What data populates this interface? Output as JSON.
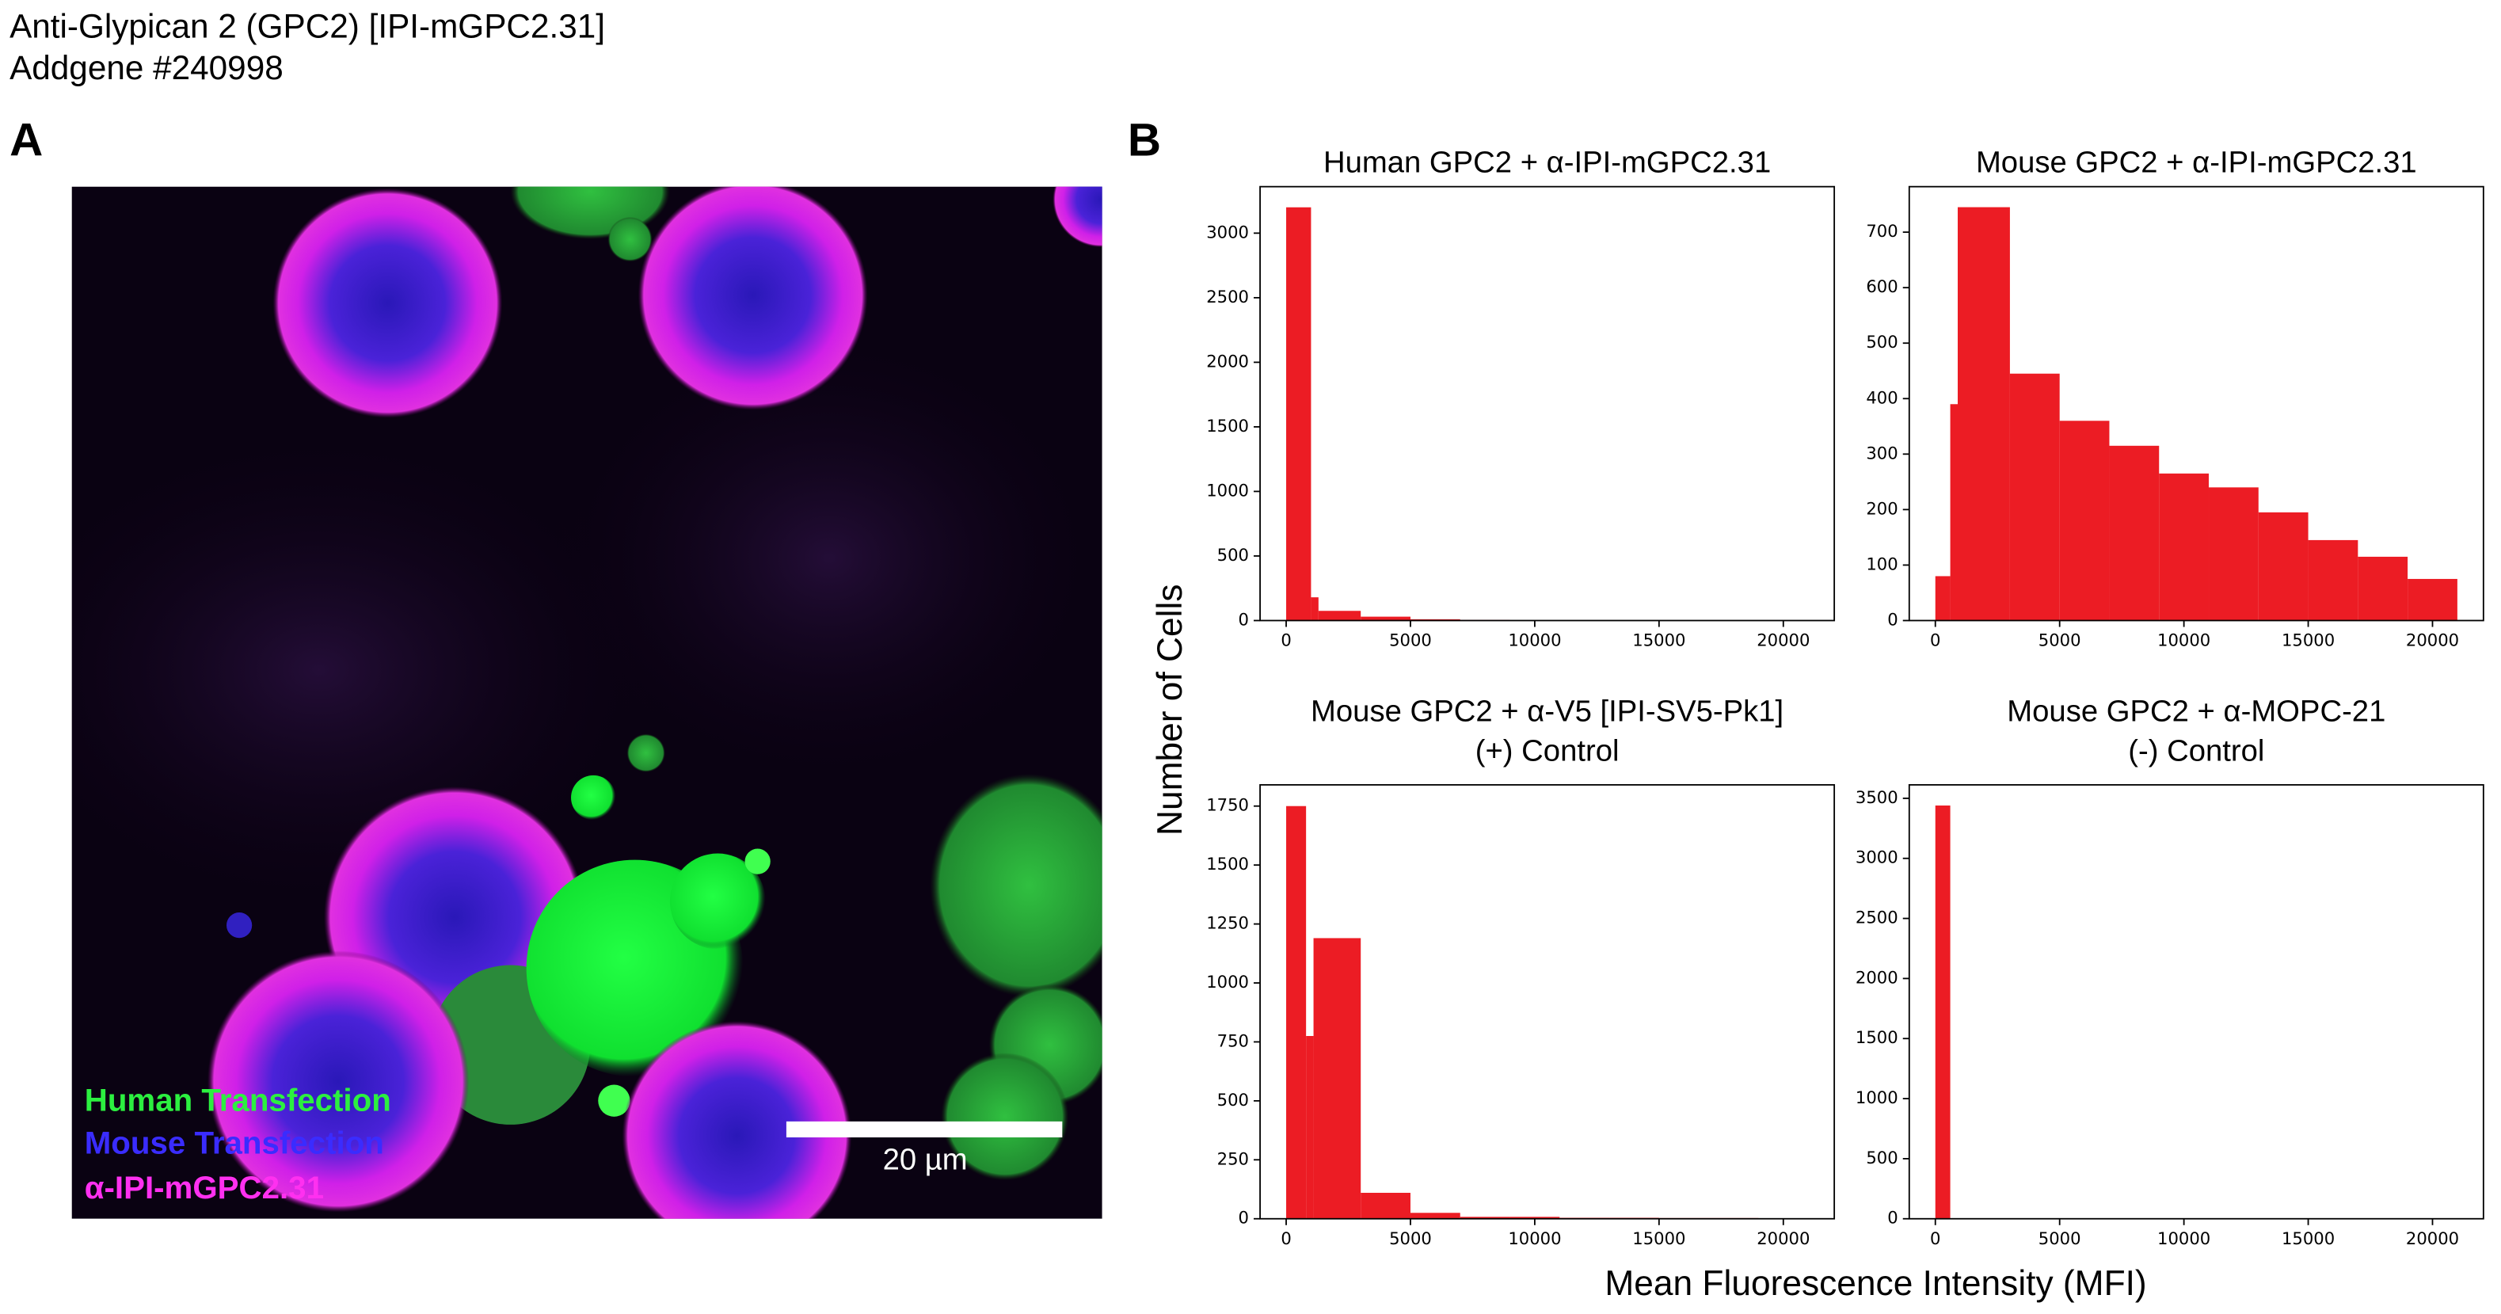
{
  "header": {
    "title": "Anti-Glypican 2 (GPC2) [IPI-mGPC2.31]",
    "subtitle": "Addgene #240998"
  },
  "panel_a": {
    "label": "A",
    "legend": [
      "Human Transfection",
      "Mouse Transfection",
      "α-IPI-mGPC2.31"
    ],
    "scale_bar": "20 µm"
  },
  "panel_b": {
    "label": "B",
    "y_label": "Number of Cells",
    "x_label": "Mean Fluorescence Intensity (MFI)"
  },
  "chart_data": [
    {
      "type": "histogram",
      "title": "Human GPC2 + α-IPI-mGPC2.31",
      "color": "#ec1c24",
      "bins": [
        0,
        1000,
        1300,
        3000,
        5000,
        7000,
        9000,
        11000,
        13000,
        15000,
        17000,
        19000,
        21000
      ],
      "values": [
        3200,
        180,
        75,
        30,
        10,
        5,
        3,
        2,
        2,
        1,
        1,
        1
      ],
      "xlim": [
        -1050,
        22050
      ],
      "xticks": [
        0,
        5000,
        10000,
        15000,
        20000
      ],
      "ylim": [
        0,
        3360
      ],
      "yticks": [
        0,
        500,
        1000,
        1500,
        2000,
        2500,
        3000
      ]
    },
    {
      "type": "histogram",
      "title": "Mouse GPC2 + α-IPI-mGPC2.31",
      "color": "#ec1c24",
      "bins": [
        0,
        600,
        900,
        3000,
        5000,
        7000,
        9000,
        11000,
        13000,
        15000,
        17000,
        19000,
        21000
      ],
      "values": [
        80,
        390,
        745,
        445,
        360,
        315,
        265,
        240,
        195,
        145,
        115,
        75
      ],
      "xlim": [
        -1050,
        22050
      ],
      "xticks": [
        0,
        5000,
        10000,
        15000,
        20000
      ],
      "ylim": [
        0,
        782
      ],
      "yticks": [
        0,
        100,
        200,
        300,
        400,
        500,
        600,
        700
      ]
    },
    {
      "type": "histogram",
      "title": "Mouse GPC2 + α-V5 [IPI-SV5-Pk1]",
      "subtitle": "(+) Control",
      "color": "#ec1c24",
      "bins": [
        0,
        800,
        1100,
        3000,
        5000,
        7000,
        9000,
        11000,
        13000,
        15000,
        17000,
        19000,
        21000
      ],
      "values": [
        1750,
        775,
        1190,
        110,
        25,
        8,
        8,
        4,
        4,
        3,
        3,
        0
      ],
      "xlim": [
        -1050,
        22050
      ],
      "xticks": [
        0,
        5000,
        10000,
        15000,
        20000
      ],
      "ylim": [
        0,
        1840
      ],
      "yticks": [
        0,
        250,
        500,
        750,
        1000,
        1250,
        1500,
        1750
      ]
    },
    {
      "type": "histogram",
      "title": "Mouse GPC2 + α-MOPC-21",
      "subtitle": "(-) Control",
      "color": "#ec1c24",
      "bins": [
        0,
        600
      ],
      "values": [
        3440
      ],
      "xlim": [
        -1050,
        22050
      ],
      "xticks": [
        0,
        5000,
        10000,
        15000,
        20000
      ],
      "ylim": [
        0,
        3612
      ],
      "yticks": [
        0,
        500,
        1000,
        1500,
        2000,
        2500,
        3000,
        3500
      ]
    }
  ]
}
